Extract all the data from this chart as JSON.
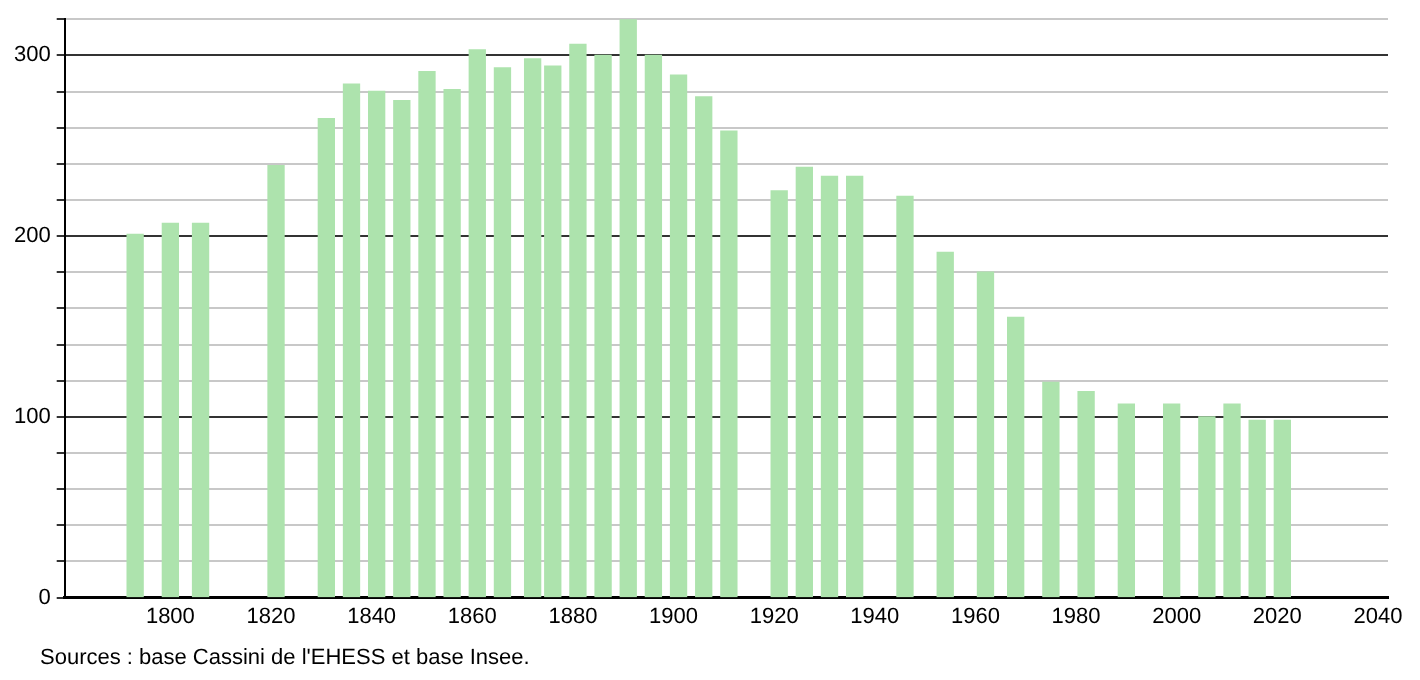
{
  "chart_data": {
    "type": "bar",
    "x": [
      1793,
      1800,
      1806,
      1821,
      1831,
      1836,
      1841,
      1846,
      1851,
      1856,
      1861,
      1866,
      1872,
      1876,
      1881,
      1886,
      1891,
      1896,
      1901,
      1906,
      1911,
      1921,
      1926,
      1931,
      1936,
      1946,
      1954,
      1962,
      1968,
      1975,
      1982,
      1990,
      1999,
      2006,
      2011,
      2016,
      2021
    ],
    "values": [
      201,
      207,
      207,
      239,
      265,
      284,
      280,
      275,
      291,
      281,
      303,
      293,
      298,
      294,
      306,
      300,
      320,
      300,
      289,
      277,
      258,
      225,
      238,
      233,
      233,
      222,
      191,
      180,
      155,
      119,
      114,
      107,
      107,
      100,
      107,
      98,
      98
    ],
    "color": "#ade3ad",
    "xlim": [
      1779,
      2042
    ],
    "xticks": [
      1800,
      1820,
      1840,
      1860,
      1880,
      1900,
      1920,
      1940,
      1960,
      1980,
      2000,
      2020,
      2040
    ],
    "ylim": [
      0,
      320
    ],
    "yticks": [
      0,
      {
        "value": 20,
        "label": null
      },
      {
        "value": 40,
        "label": null
      },
      {
        "value": 60,
        "label": null
      },
      {
        "value": 80,
        "label": null
      },
      100,
      {
        "value": 120,
        "label": null
      },
      {
        "value": 140,
        "label": null
      },
      {
        "value": 160,
        "label": null
      },
      {
        "value": 180,
        "label": null
      },
      200,
      {
        "value": 220,
        "label": null
      },
      {
        "value": 240,
        "label": null
      },
      {
        "value": 260,
        "label": null
      },
      {
        "value": 280,
        "label": null
      },
      300,
      {
        "value": 320,
        "label": null
      }
    ],
    "grid": "y",
    "legend": false,
    "annotations": [
      "Sources : base Cassini de l'EHESS et base Insee."
    ]
  }
}
